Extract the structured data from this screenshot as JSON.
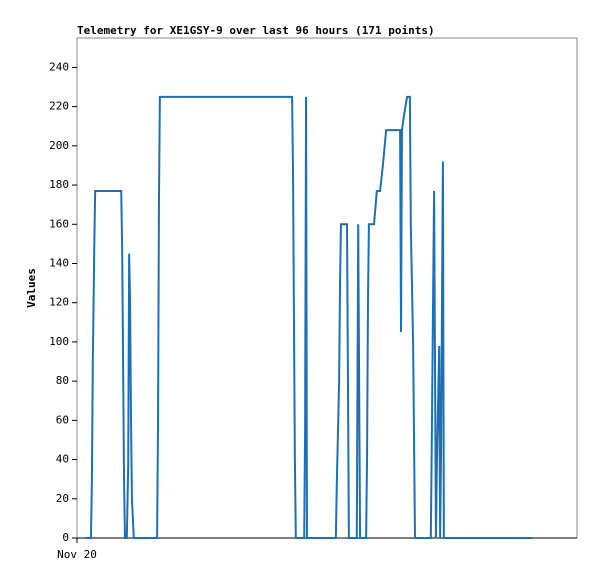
{
  "chart_data": {
    "type": "line",
    "title": "Telemetry for XE1GSY-9 over last 96 hours (171 points)",
    "y_label": "Values",
    "x": [
      1.7,
      3.0,
      3.2,
      3.4,
      3.7,
      3.9,
      9.5,
      9.7,
      9.9,
      10.1,
      10.3,
      10.7,
      11.0,
      11.2,
      11.4,
      11.6,
      11.8,
      12.2,
      17.2,
      17.4,
      17.6,
      17.8,
      46.2,
      46.4,
      46.6,
      46.8,
      47.0,
      48.8,
      49.0,
      49.2,
      49.4,
      55.6,
      55.8,
      56.3,
      56.5,
      56.7,
      58.0,
      58.2,
      58.4,
      60.1,
      60.4,
      60.6,
      60.8,
      62.1,
      62.3,
      62.5,
      62.7,
      63.8,
      64.4,
      65.1,
      65.7,
      66.4,
      69.4,
      69.6,
      69.8,
      70.2,
      70.9,
      71.5,
      71.7,
      72.2,
      72.6,
      76.0,
      76.2,
      76.7,
      77.1,
      77.3,
      77.8,
      78.0,
      78.2,
      78.6,
      78.8,
      97.7
    ],
    "series": [
      {
        "name": "Values",
        "color": "#1f6fb4",
        "values": [
          0,
          0,
          30,
          90,
          147,
          177,
          177,
          147,
          90,
          30,
          0,
          0,
          37,
          145,
          120,
          60,
          20,
          0,
          0,
          57,
          170,
          225,
          225,
          187,
          112,
          40,
          0,
          0,
          57,
          225,
          0,
          0,
          27,
          80,
          130,
          160,
          160,
          80,
          0,
          0,
          160,
          80,
          0,
          0,
          40,
          120,
          160,
          160,
          177,
          177,
          190,
          208,
          208,
          105,
          208,
          215,
          225,
          225,
          160,
          98,
          0,
          0,
          47,
          177,
          0,
          37,
          98,
          0,
          45,
          192,
          0,
          0
        ]
      }
    ],
    "xlim": [
      0,
      107.4
    ],
    "xticks": [
      {
        "value": 0,
        "label": "Nov 20"
      }
    ],
    "ylim": [
      0,
      255
    ],
    "yticks": [
      0,
      20,
      40,
      60,
      80,
      100,
      120,
      140,
      160,
      180,
      200,
      220,
      240
    ]
  }
}
